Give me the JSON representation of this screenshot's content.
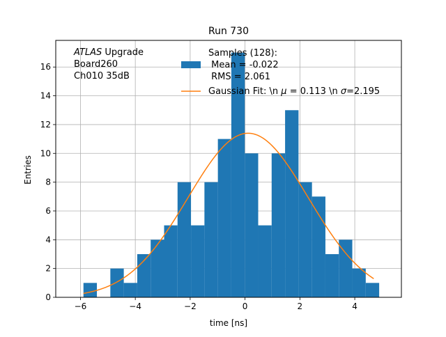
{
  "chart_data": {
    "type": "bar",
    "title": "Run 730",
    "xlabel": "time [ns]",
    "ylabel": "Entries",
    "xlim": [
      -6.9,
      5.7
    ],
    "ylim": [
      0,
      17.85
    ],
    "xticks": [
      -6,
      -4,
      -2,
      0,
      2,
      4
    ],
    "yticks": [
      0,
      2,
      4,
      6,
      8,
      10,
      12,
      14,
      16
    ],
    "grid": true,
    "legend_position": "top-center",
    "annotation": {
      "lines": [
        {
          "italic": "ATLAS",
          "text": " Upgrade"
        },
        {
          "italic": "",
          "text": " Board260"
        },
        {
          "italic": "",
          "text": " Ch010 35dB"
        }
      ]
    },
    "histogram": {
      "name": "Samples (128):\n Mean = -0.022\n RMS = 2.061",
      "legend_lines": [
        "Samples (128):",
        " Mean = -0.022",
        " RMS = 2.061"
      ],
      "color": "#1f77b4",
      "bin_edges": [
        -5.89,
        -5.4,
        -4.91,
        -4.42,
        -3.93,
        -3.44,
        -2.95,
        -2.46,
        -1.97,
        -1.48,
        -0.99,
        -0.5,
        -0.01,
        0.48,
        0.97,
        1.46,
        1.95,
        2.44,
        2.93,
        3.42,
        3.91,
        4.4,
        4.89
      ],
      "counts": [
        1,
        0,
        2,
        1,
        3,
        4,
        5,
        8,
        5,
        8,
        11,
        17,
        10,
        5,
        10,
        13,
        8,
        7,
        3,
        4,
        2,
        1
      ]
    },
    "fit": {
      "name": "Gaussian Fit: \\n $\\mu$ = 0.113 \\n $\\sigma$=2.195",
      "legend_text": "Gaussian Fit: \\n μ = 0.113 \\n σ=2.195",
      "color": "#ff7f0e",
      "type": "gaussian",
      "amplitude": 11.4,
      "mu": 0.113,
      "sigma": 2.195,
      "x_range": [
        -5.89,
        4.69
      ]
    }
  }
}
